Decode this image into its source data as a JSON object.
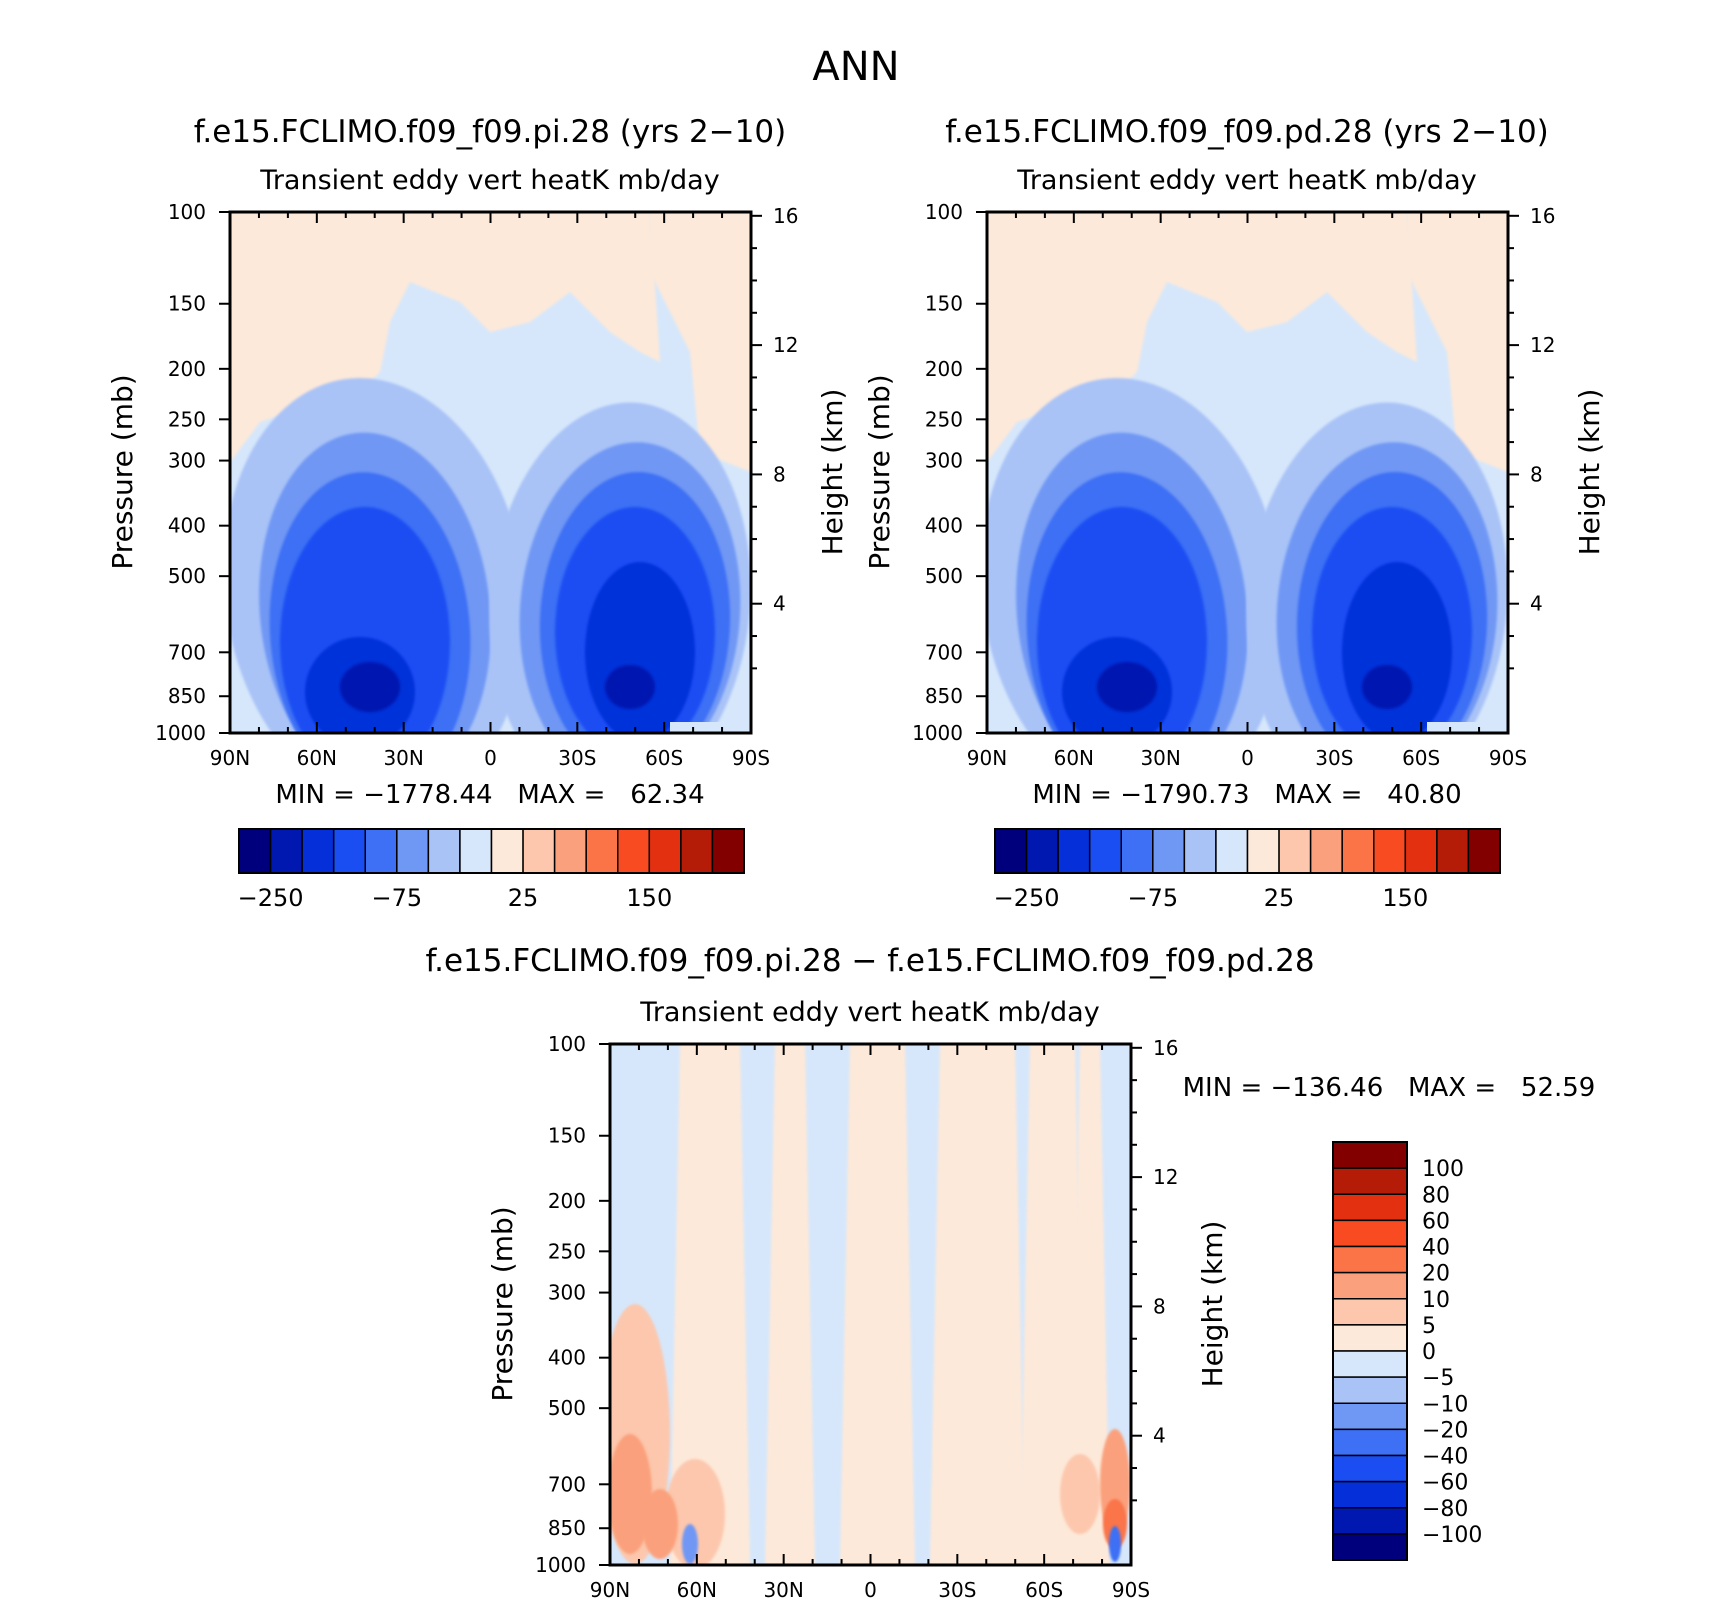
{
  "page_title": "ANN",
  "colors": {
    "cb_main": [
      "#00007d",
      "#0018b0",
      "#0530d9",
      "#1a4ef3",
      "#3d70f5",
      "#6f97f4",
      "#a9c3f7",
      "#d6e7fb",
      "#fde9d9",
      "#fcc7ad",
      "#fba07c",
      "#fa7448",
      "#f84b22",
      "#e23010",
      "#b51c07",
      "#830000"
    ],
    "cb_diff": [
      "#00007d",
      "#0018b0",
      "#0530d9",
      "#1a4ef3",
      "#3d70f5",
      "#6f97f4",
      "#a9c3f7",
      "#d6e7fb",
      "#fde9d9",
      "#fcc7ad",
      "#fba07c",
      "#fa7448",
      "#f84b22",
      "#e23010",
      "#b51c07",
      "#830000"
    ]
  },
  "chart_data": [
    {
      "type": "heatmap",
      "id": "panel1",
      "title": "f.e15.FCLIMO.f09_f09.pi.28 (yrs 2−10)",
      "subtitle": "Transient eddy vert heatK mb/day",
      "ylabel": "Pressure (mb)",
      "y2label": "Height (km)",
      "x_ticks": [
        "90N",
        "60N",
        "30N",
        "0",
        "30S",
        "60S",
        "90S"
      ],
      "y_ticks": [
        100,
        150,
        200,
        250,
        300,
        400,
        500,
        700,
        850,
        1000
      ],
      "y2_ticks": [
        16,
        12,
        8,
        4
      ],
      "stats": "MIN = −1778.44   MAX =   62.34",
      "colorbar_labels": [
        "−250",
        "−75",
        "25",
        "150"
      ],
      "log_pressure": true
    },
    {
      "type": "heatmap",
      "id": "panel2",
      "title": "f.e15.FCLIMO.f09_f09.pd.28 (yrs 2−10)",
      "subtitle": "Transient eddy vert heatK mb/day",
      "ylabel": "Pressure (mb)",
      "y2label": "Height (km)",
      "x_ticks": [
        "90N",
        "60N",
        "30N",
        "0",
        "30S",
        "60S",
        "90S"
      ],
      "y_ticks": [
        100,
        150,
        200,
        250,
        300,
        400,
        500,
        700,
        850,
        1000
      ],
      "y2_ticks": [
        16,
        12,
        8,
        4
      ],
      "stats": "MIN = −1790.73   MAX =   40.80",
      "colorbar_labels": [
        "−250",
        "−75",
        "25",
        "150"
      ],
      "log_pressure": true
    },
    {
      "type": "heatmap",
      "id": "panel3",
      "title": "f.e15.FCLIMO.f09_f09.pi.28 − f.e15.FCLIMO.f09_f09.pd.28",
      "subtitle": "Transient eddy vert heatK mb/day",
      "ylabel": "Pressure (mb)",
      "y2label": "Height (km)",
      "x_ticks": [
        "90N",
        "60N",
        "30N",
        "0",
        "30S",
        "60S",
        "90S"
      ],
      "y_ticks": [
        100,
        150,
        200,
        250,
        300,
        400,
        500,
        700,
        850,
        1000
      ],
      "y2_ticks": [
        16,
        12,
        8,
        4
      ],
      "stats": "MIN = −136.46   MAX =   52.59",
      "colorbar_labels": [
        "100",
        "80",
        "60",
        "40",
        "20",
        "10",
        "5",
        "0",
        "−5",
        "−10",
        "−20",
        "−40",
        "−60",
        "−80",
        "−100"
      ],
      "log_pressure": true
    }
  ]
}
